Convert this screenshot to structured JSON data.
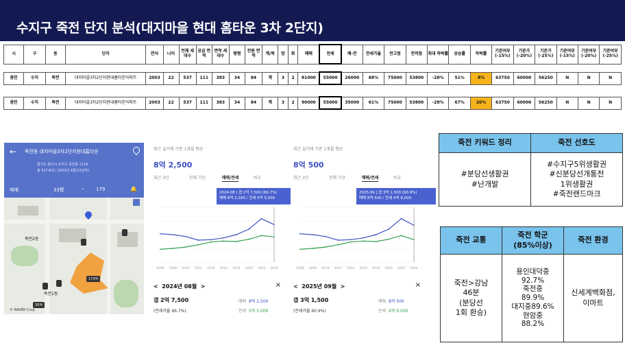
{
  "header": {
    "title": "수지구 죽전 단지 분석(대지마을 현대 홈타운 3차 2단지)"
  },
  "table": {
    "headers": [
      "시",
      "구",
      "동",
      "단지",
      "연식",
      "나이",
      "전체 세대수",
      "공급 면적",
      "면적 세대수",
      "평형",
      "전용 면적",
      "계/복",
      "방",
      "화",
      "매매",
      "전세",
      "매-전",
      "전세가율",
      "전고점",
      "전저점",
      "최대 하락률",
      "상승률",
      "하락률",
      "기준여부 (-15%)",
      "기준가 (-20%)",
      "기준가 (-25%)",
      "기준여부 (-15%)",
      "기준여부 (-20%)",
      "기준여부 (-25%)"
    ],
    "rows": [
      [
        "용인",
        "수지",
        "죽전",
        "대지마을3차2단지현대홈타운아파트",
        "2003",
        "22",
        "537",
        "111",
        "383",
        "34",
        "84",
        "계",
        "3",
        "2",
        "81000",
        "55000",
        "26000",
        "68%",
        "75000",
        "53800",
        "-28%",
        "51%",
        "8%",
        "63750",
        "60000",
        "56250",
        "N",
        "N",
        "N"
      ],
      [
        "용인",
        "수지",
        "죽전",
        "대지마을3차2단지현대홈타운아파트",
        "2003",
        "22",
        "537",
        "111",
        "383",
        "34",
        "84",
        "계",
        "3",
        "2",
        "90000",
        "55000",
        "35000",
        "61%",
        "75000",
        "53800",
        "-28%",
        "67%",
        "20%",
        "63750",
        "60000",
        "56250",
        "N",
        "N",
        "N"
      ]
    ],
    "highlight_color": "#f6b21a"
  },
  "map": {
    "title": "죽전동 대지마을3차2단지현대홈타운",
    "address": "경기도 용인시 수지구 죽전동 1118",
    "info": "총 537세대 / 2003년 4월(22년차)",
    "tab_trade": "매매",
    "tab_area": "33평",
    "tab_chat": "179",
    "label1": "죽전2동",
    "label2": "죽전1동",
    "tag1": "173억",
    "tag2": "35억",
    "logo": "© NAVER Corp."
  },
  "charts": [
    {
      "subtitle": "최근 실거래 기준 1개월 평균",
      "price": "8억 2,500",
      "tabs": [
        "최근 3년",
        "전체 기간",
        "매매/전세",
        "비교"
      ],
      "tooltip_line1": "2024.08 | 갭 2억 7,500 (66.7%)",
      "tooltip_line2": "매매 8억 2,500 / 전세 5억 5,000",
      "date": "2024년 08월",
      "gap": "갭 2억 7,500",
      "ratio": "(전세가율 66.7%)",
      "legend_trade_label": "매매",
      "legend_trade": "8억 2,500",
      "legend_jeonse_label": "전세",
      "legend_jeonse": "5억 5,000"
    },
    {
      "subtitle": "최근 실거래 기준 1개월 평균",
      "price": "8억 500",
      "tabs": [
        "최근 3년",
        "전체 기간",
        "매매/전세",
        "비교"
      ],
      "tooltip_line1": "2025.09 | 갭 3억 1,500 (60.9%)",
      "tooltip_line2": "매매 8억 500 / 전세 4억 9,000",
      "date": "2025년 09월",
      "gap": "갭 3억 1,500",
      "ratio": "(전세가율 60.9%)",
      "legend_trade_label": "매매",
      "legend_trade": "8억 500",
      "legend_jeonse_label": "전세",
      "legend_jeonse": "4억 9,000"
    }
  ],
  "chart_data": [
    {
      "type": "line",
      "x": [
        "2006",
        "2008",
        "2010",
        "2012",
        "2014",
        "2016",
        "2018",
        "2020",
        "2022",
        "2024"
      ],
      "series": [
        {
          "name": "매매",
          "color": "#3b4fc1",
          "values": [
            6.2,
            6.0,
            5.6,
            4.8,
            4.9,
            5.3,
            6.0,
            7.2,
            9.5,
            8.2
          ]
        },
        {
          "name": "전세",
          "color": "#2e9e4a",
          "values": [
            2.8,
            3.0,
            3.3,
            3.8,
            4.4,
            4.6,
            4.5,
            5.0,
            5.8,
            5.5
          ]
        }
      ],
      "ylim": [
        0,
        12
      ]
    },
    {
      "type": "line",
      "x": [
        "2006",
        "2008",
        "2010",
        "2012",
        "2014",
        "2016",
        "2018",
        "2020",
        "2022",
        "2024"
      ],
      "series": [
        {
          "name": "매매",
          "color": "#3b4fc1",
          "values": [
            6.2,
            6.0,
            5.6,
            4.8,
            4.9,
            5.3,
            6.0,
            7.2,
            9.5,
            8.05
          ]
        },
        {
          "name": "전세",
          "color": "#2e9e4a",
          "values": [
            2.8,
            3.0,
            3.3,
            3.8,
            4.4,
            4.6,
            4.5,
            5.0,
            5.8,
            4.9
          ]
        }
      ],
      "ylim": [
        0,
        12
      ]
    }
  ],
  "info1": {
    "h1": "죽전 키워드 정리",
    "h2": "죽전 선호도",
    "c1": "#분당선생활권\n#난개발",
    "c2": "#수지구5위생활권\n#신분당선개통전\n1위생활권\n#죽전랜드마크"
  },
  "info2": {
    "h1": "죽전 교통",
    "h2": "죽전 학군\n(85%이상)",
    "h3": "죽전 환경",
    "c1": "죽전>강남\n46분\n(분당선\n1회 환승)",
    "c2": "용인대덕중\n92.7%\n죽전중\n89.9%\n대지중89.6%\n현암중\n88.2%",
    "c3": "신세계백화점,\n이마트"
  }
}
